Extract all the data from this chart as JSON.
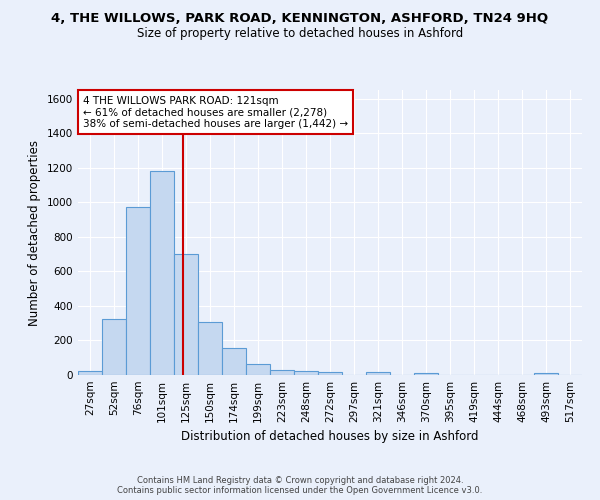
{
  "title": "4, THE WILLOWS, PARK ROAD, KENNINGTON, ASHFORD, TN24 9HQ",
  "subtitle": "Size of property relative to detached houses in Ashford",
  "xlabel": "Distribution of detached houses by size in Ashford",
  "ylabel": "Number of detached properties",
  "categories": [
    "27sqm",
    "52sqm",
    "76sqm",
    "101sqm",
    "125sqm",
    "150sqm",
    "174sqm",
    "199sqm",
    "223sqm",
    "248sqm",
    "272sqm",
    "297sqm",
    "321sqm",
    "346sqm",
    "370sqm",
    "395sqm",
    "419sqm",
    "444sqm",
    "468sqm",
    "493sqm",
    "517sqm"
  ],
  "values": [
    25,
    325,
    970,
    1180,
    700,
    305,
    155,
    65,
    30,
    25,
    15,
    0,
    15,
    0,
    10,
    0,
    0,
    0,
    0,
    10,
    0
  ],
  "bar_color": "#c5d8f0",
  "bar_edge_color": "#5b9bd5",
  "red_line_x": 3.87,
  "red_line_color": "#cc0000",
  "annotation_text": "4 THE WILLOWS PARK ROAD: 121sqm\n← 61% of detached houses are smaller (2,278)\n38% of semi-detached houses are larger (1,442) →",
  "annotation_box_edge_color": "#cc0000",
  "annotation_box_face_color": "white",
  "ylim": [
    0,
    1650
  ],
  "yticks": [
    0,
    200,
    400,
    600,
    800,
    1000,
    1200,
    1400,
    1600
  ],
  "footer_line1": "Contains HM Land Registry data © Crown copyright and database right 2024.",
  "footer_line2": "Contains public sector information licensed under the Open Government Licence v3.0.",
  "bg_color": "#eaf0fb",
  "grid_color": "white",
  "title_fontsize": 9.5,
  "subtitle_fontsize": 8.5,
  "axis_label_fontsize": 8.5,
  "tick_fontsize": 7.5,
  "annotation_fontsize": 7.5
}
